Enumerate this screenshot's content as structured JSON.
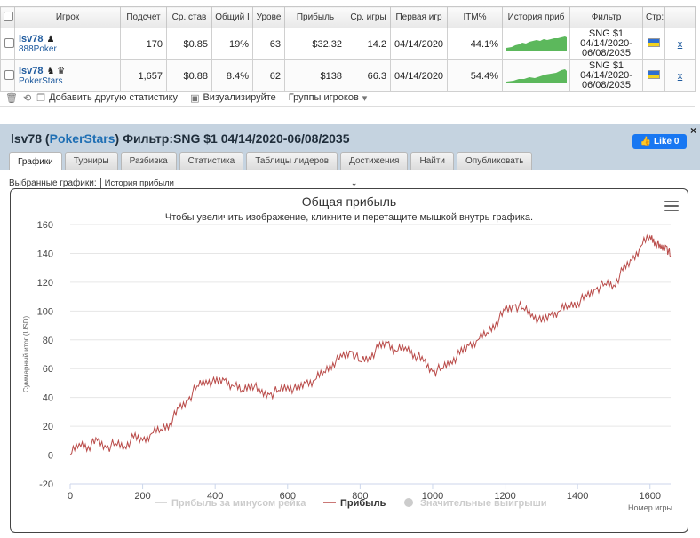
{
  "table": {
    "headers": [
      "Игрок",
      "Подсчет",
      "Ср. став",
      "Общий I",
      "Урове",
      "Прибыль",
      "Ср. игры",
      "Первая игр",
      "ITM%",
      "История приб",
      "Фильтр",
      "Стр:"
    ],
    "rows": [
      {
        "player": "lsv78",
        "site": "888Poker",
        "icons": "♟",
        "count": "170",
        "avg_stake": "$0.85",
        "roi": "19%",
        "level": "63",
        "profit": "$32.32",
        "avg_games": "14.2",
        "first_game": "04/14/2020",
        "itm": "44.1%",
        "filter_line1": "SNG $1",
        "filter_line2": "04/14/2020-",
        "filter_line3": "06/08/2035",
        "remove": "x"
      },
      {
        "player": "lsv78",
        "site": "PokerStars",
        "icons": "♞ ♛",
        "count": "1,657",
        "avg_stake": "$0.88",
        "roi": "8.4%",
        "level": "62",
        "profit": "$138",
        "avg_games": "66.3",
        "first_game": "04/14/2020",
        "itm": "54.4%",
        "filter_line1": "SNG $1",
        "filter_line2": "04/14/2020-",
        "filter_line3": "06/08/2035",
        "remove": "x"
      }
    ]
  },
  "toolbar": {
    "add_stats": "Добавить другую статистику",
    "visualize": "Визуализируйте",
    "player_groups": "Группы игроков"
  },
  "panel": {
    "title_player": "lsv78",
    "title_site": "PokerStars",
    "title_filter": "Фильтр:SNG $1 04/14/2020-06/08/2035",
    "like_label": "Like 0",
    "close": "×"
  },
  "tabs": [
    "Графики",
    "Турниры",
    "Разбивка",
    "Статистика",
    "Таблицы лидеров",
    "Достижения",
    "Найти",
    "Опубликовать"
  ],
  "chart_select": {
    "label": "Выбранные графики:",
    "value": "История прибыли"
  },
  "chart_data": {
    "type": "line",
    "title": "Общая прибыль",
    "subtitle": "Чтобы увеличить изображение, кликните и перетащите мышкой внутрь графика.",
    "xlabel": "Номер игры",
    "ylabel": "Суммарный итог (USD)",
    "xlim": [
      0,
      1657
    ],
    "ylim": [
      -20,
      160
    ],
    "xticks": [
      0,
      200,
      400,
      600,
      800,
      1000,
      1200,
      1400,
      1600
    ],
    "yticks": [
      -20,
      0,
      20,
      40,
      60,
      80,
      100,
      120,
      140,
      160
    ],
    "legend_position": "bottom",
    "series": [
      {
        "name": "Прибыль за минусом рейка",
        "visible": false,
        "color": "#cccccc",
        "values": []
      },
      {
        "name": "Прибыль",
        "visible": true,
        "color": "#b94a48",
        "x": [
          0,
          25,
          50,
          75,
          100,
          125,
          150,
          175,
          200,
          225,
          250,
          275,
          300,
          325,
          350,
          375,
          400,
          425,
          450,
          475,
          500,
          525,
          550,
          575,
          600,
          625,
          650,
          675,
          700,
          725,
          750,
          775,
          800,
          825,
          850,
          875,
          900,
          925,
          950,
          975,
          1000,
          1025,
          1050,
          1075,
          1100,
          1125,
          1150,
          1175,
          1200,
          1225,
          1250,
          1275,
          1300,
          1325,
          1350,
          1375,
          1400,
          1425,
          1450,
          1475,
          1500,
          1525,
          1550,
          1575,
          1600,
          1615,
          1630,
          1645,
          1657
        ],
        "values": [
          0,
          8,
          6,
          10,
          5,
          8,
          6,
          12,
          10,
          15,
          18,
          22,
          32,
          38,
          48,
          52,
          50,
          52,
          48,
          45,
          50,
          43,
          42,
          45,
          48,
          45,
          50,
          52,
          58,
          64,
          68,
          72,
          65,
          68,
          74,
          78,
          72,
          75,
          70,
          65,
          58,
          60,
          65,
          70,
          76,
          80,
          85,
          92,
          100,
          104,
          102,
          98,
          92,
          97,
          100,
          104,
          106,
          110,
          115,
          119,
          118,
          128,
          135,
          145,
          152,
          148,
          143,
          145,
          138
        ]
      },
      {
        "name": "Значительные выигрыши",
        "visible": false,
        "color": "#cccccc",
        "values": []
      }
    ]
  }
}
